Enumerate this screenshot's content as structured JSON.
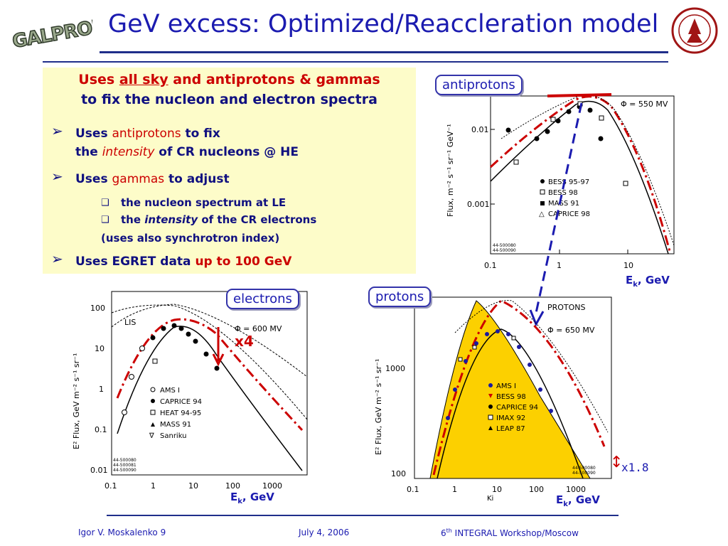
{
  "header": {
    "logo_left_text": "GALPROP",
    "title": "GeV excess: Optimized/Reaccleration model"
  },
  "summary": {
    "line1_pre": "Uses ",
    "line1_u": "all sky",
    "line1_post": " and antiprotons & gammas",
    "line2": "to fix the nucleon and electron spectra",
    "b1_a": "Uses ",
    "b1_b": "antiprotons",
    "b1_c": " to fix",
    "b1_d": "the ",
    "b1_e": "intensity",
    "b1_f": " of CR nucleons @ HE",
    "b2_a": "Uses ",
    "b2_b": "gammas",
    "b2_c": " to adjust",
    "s1": "the nucleon spectrum at LE",
    "s2_a": "the ",
    "s2_b": "intensity",
    "s2_c": " of the CR electrons",
    "s3": "(uses also synchrotron index)",
    "b3_a": "Uses EGRET data ",
    "b3_b": "up to 100 GeV"
  },
  "labels": {
    "antiprotons": "antiprotons",
    "electrons": "electrons",
    "protons": "protons",
    "ek_main": "E",
    "ek_sub": "k",
    "ek_unit": ", GeV",
    "x4": "x4",
    "x18": "x1.8"
  },
  "chart_data": [
    {
      "type": "scatter",
      "name": "antiprotons",
      "annotation": "Φ = 550 MV",
      "ylabel": "Flux, m⁻² s⁻¹ sr⁻¹ GeV⁻¹",
      "x_ticks": [
        "0.1",
        "1",
        "10"
      ],
      "y_ticks": [
        "0.01",
        "0.001"
      ],
      "legend": [
        "BESS 95-97",
        "BESS 98",
        "MASS 91",
        "CAPRICE 98"
      ],
      "codes": [
        "44-500080",
        "44-500090"
      ]
    },
    {
      "type": "scatter",
      "name": "electrons",
      "annotation": "Φ = 600 MV",
      "inner_label": "LIS",
      "ylabel": "E² Flux, GeV m⁻² s⁻¹ sr⁻¹",
      "x_ticks": [
        "0.1",
        "1",
        "10",
        "100",
        "1000"
      ],
      "y_ticks": [
        "100",
        "10",
        "1",
        "0.1",
        "0.01"
      ],
      "legend": [
        "AMS I",
        "CAPRICE 94",
        "HEAT 94-95",
        "MASS 91",
        "Sanriku"
      ],
      "codes": [
        "44-500080",
        "44-500081",
        "44-500090"
      ]
    },
    {
      "type": "scatter",
      "name": "protons",
      "title": "PROTONS",
      "annotation": "Φ = 650 MV",
      "ylabel": "E² Flux, GeV m⁻² s⁻¹ sr⁻¹",
      "xlabel": "Ki",
      "x_ticks": [
        "0.1",
        "1",
        "10",
        "100",
        "1000"
      ],
      "y_ticks": [
        "1000",
        "100"
      ],
      "legend": [
        "AMS I",
        "BESS 98",
        "CAPRICE 94",
        "IMAX 92",
        "LEAP 87"
      ],
      "codes": [
        "44-500080",
        "44-500090"
      ]
    }
  ],
  "footer": {
    "author": "Igor V. Moskalenko  9",
    "date": "July 4, 2006",
    "event_pre": "6",
    "event_sup": "th",
    "event_post": " INTEGRAL Workshop/Moscow"
  },
  "colors": {
    "title": "#1b1bb0",
    "accent": "#cc0000",
    "rule": "#1f2e8a",
    "box": "#fdfcc9"
  }
}
